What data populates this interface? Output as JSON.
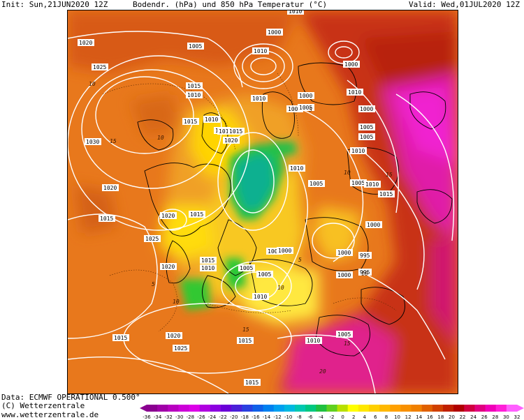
{
  "header": {
    "init": "Init: Sun,21JUN2020 12Z",
    "title": "Bodendr. (hPa) und 850 hPa Temperatur (°C)",
    "valid": "Valid: Wed,01JUL2020 12Z"
  },
  "footer": {
    "source": "Data: ECMWF OPERATIONAL 0.500°",
    "copyright": "(C) Wetterzentrale",
    "website": "www.wetterzentrale.de"
  },
  "colorbar": {
    "ticks": [
      "-36",
      "-34",
      "-32",
      "-30",
      "-28",
      "-26",
      "-24",
      "-22",
      "-20",
      "-18",
      "-16",
      "-14",
      "-12",
      "-10",
      "-8",
      "-6",
      "-4",
      "-2",
      "0",
      "2",
      "4",
      "6",
      "8",
      "10",
      "12",
      "14",
      "16",
      "18",
      "20",
      "22",
      "24",
      "26",
      "28",
      "30",
      "32"
    ],
    "colors": [
      "#8a0090",
      "#a000a8",
      "#b800c0",
      "#cc00d8",
      "#dc00e8",
      "#b000e0",
      "#8c00e0",
      "#6a00d8",
      "#4a20d8",
      "#2a40e0",
      "#1060e8",
      "#0080f0",
      "#00a0f0",
      "#00b8e0",
      "#00c8b0",
      "#00c880",
      "#20c040",
      "#60d020",
      "#b8e000",
      "#ffff00",
      "#ffe800",
      "#ffd000",
      "#ffb800",
      "#ffa000",
      "#f89000",
      "#f08000",
      "#e06000",
      "#d04000",
      "#c02000",
      "#b00000",
      "#d00040",
      "#e00080",
      "#f000b8",
      "#ff20d8",
      "#ff60ff"
    ]
  },
  "map_labels": {
    "isobars": [
      {
        "text": "1010"
      },
      {
        "text": "1015"
      },
      {
        "text": "1020"
      },
      {
        "text": "1025"
      },
      {
        "text": "1030"
      },
      {
        "text": "1005"
      },
      {
        "text": "1000"
      },
      {
        "text": "1010"
      },
      {
        "text": "1015"
      },
      {
        "text": "1010"
      },
      {
        "text": "1010"
      },
      {
        "text": "1020"
      },
      {
        "text": "1015"
      },
      {
        "text": "1010"
      },
      {
        "text": "1005"
      },
      {
        "text": "1000"
      },
      {
        "text": "1000"
      },
      {
        "text": "1010"
      },
      {
        "text": "1005"
      },
      {
        "text": "1000"
      },
      {
        "text": "1005"
      },
      {
        "text": "1010"
      },
      {
        "text": "1005"
      },
      {
        "text": "1015"
      },
      {
        "text": "1010"
      },
      {
        "text": "1005"
      },
      {
        "text": "1010"
      },
      {
        "text": "1015"
      },
      {
        "text": "1020"
      },
      {
        "text": "1015"
      },
      {
        "text": "1020"
      },
      {
        "text": "1015"
      },
      {
        "text": "1020"
      },
      {
        "text": "1025"
      },
      {
        "text": "1020"
      },
      {
        "text": "1015"
      },
      {
        "text": "1020"
      },
      {
        "text": "1015"
      },
      {
        "text": "1010"
      },
      {
        "text": "1005"
      },
      {
        "text": "1010"
      },
      {
        "text": "1015"
      },
      {
        "text": "1000"
      },
      {
        "text": "1005"
      },
      {
        "text": "1010"
      },
      {
        "text": "1015"
      },
      {
        "text": "1010"
      },
      {
        "text": "1005"
      },
      {
        "text": "1000"
      },
      {
        "text": "995"
      },
      {
        "text": "1000"
      },
      {
        "text": "995"
      },
      {
        "text": "1000"
      },
      {
        "text": "1005"
      },
      {
        "text": "1005"
      },
      {
        "text": "1010"
      },
      {
        "text": "1015"
      },
      {
        "text": "1015"
      },
      {
        "text": "1020"
      },
      {
        "text": "1025"
      },
      {
        "text": "1015"
      },
      {
        "text": "1010"
      },
      {
        "text": "1010"
      },
      {
        "text": "1005"
      },
      {
        "text": "1000"
      }
    ],
    "temps": [
      {
        "text": "10"
      },
      {
        "text": "15"
      },
      {
        "text": "10"
      },
      {
        "text": "5"
      },
      {
        "text": "10"
      },
      {
        "text": "15"
      },
      {
        "text": "5"
      },
      {
        "text": "10"
      },
      {
        "text": "15"
      },
      {
        "text": "10"
      },
      {
        "text": "15"
      },
      {
        "text": "20"
      },
      {
        "text": "5"
      },
      {
        "text": "10"
      }
    ]
  }
}
